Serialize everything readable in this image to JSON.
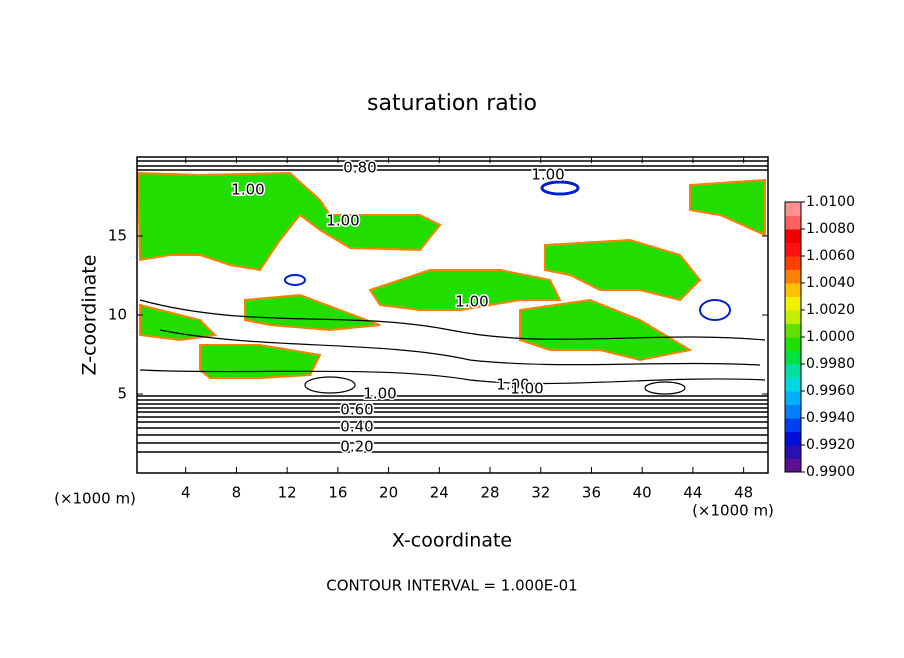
{
  "chart_data": {
    "type": "contour",
    "title": "saturation ratio",
    "x_label": "X-coordinate",
    "y_label": "Z-coordinate",
    "x_unit": "(×1000 m)",
    "y_unit": "(×1000 m)",
    "footer": "CONTOUR INTERVAL = 1.000E-01",
    "xlim": [
      0,
      50
    ],
    "xticks": [
      4,
      8,
      12,
      16,
      20,
      24,
      28,
      32,
      36,
      40,
      44,
      48
    ],
    "ylim": [
      0,
      20
    ],
    "yticks": [
      5,
      10,
      15
    ],
    "contour_labels": [
      "0.80",
      "1.00",
      "1.00",
      "1.00",
      "1.00",
      "1.00",
      "1.00",
      "1.00",
      "0.60",
      "0.40",
      "0.20"
    ],
    "colorbar": {
      "lim": [
        0.99,
        1.01
      ],
      "ticks": [
        {
          "value": 0.99,
          "label": "0.9900"
        },
        {
          "value": 0.992,
          "label": "0.9920"
        },
        {
          "value": 0.994,
          "label": "0.9940"
        },
        {
          "value": 0.996,
          "label": "0.9960"
        },
        {
          "value": 0.998,
          "label": "0.9980"
        },
        {
          "value": 1.0,
          "label": "1.0000"
        },
        {
          "value": 1.002,
          "label": "1.0020"
        },
        {
          "value": 1.004,
          "label": "1.0040"
        },
        {
          "value": 1.006,
          "label": "1.0060"
        },
        {
          "value": 1.008,
          "label": "1.0080"
        },
        {
          "value": 1.01,
          "label": "1.0100"
        }
      ],
      "colors": [
        "#5a1090",
        "#2a10b0",
        "#0010d8",
        "#0040f0",
        "#0080ff",
        "#00b0ff",
        "#00d8e0",
        "#00e0a0",
        "#00e040",
        "#20e000",
        "#60e000",
        "#c0f000",
        "#f0f000",
        "#ffc000",
        "#ff8000",
        "#ff4000",
        "#ff1010",
        "#f00000",
        "#ff6060",
        "#ff9090"
      ]
    }
  }
}
